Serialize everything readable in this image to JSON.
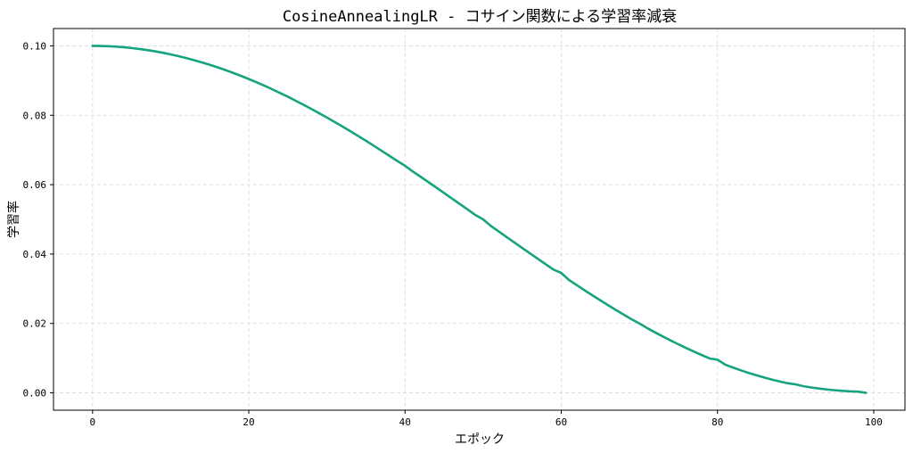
{
  "chart_data": {
    "type": "line",
    "title": "CosineAnnealingLR - コサイン関数による学習率減衰",
    "xlabel": "エポック",
    "ylabel": "学習率",
    "xlim": [
      -5,
      104
    ],
    "ylim": [
      -0.005,
      0.105
    ],
    "xticks": [
      0,
      20,
      40,
      60,
      80,
      100
    ],
    "yticks": [
      0.0,
      0.02,
      0.04,
      0.06,
      0.08,
      0.1
    ],
    "xtick_labels": [
      "0",
      "20",
      "40",
      "60",
      "80",
      "100"
    ],
    "ytick_labels": [
      "0.00",
      "0.02",
      "0.04",
      "0.06",
      "0.08",
      "0.10"
    ],
    "grid": true,
    "colors": {
      "line": "#16a37f"
    },
    "series": [
      {
        "x": [
          0,
          1,
          2,
          3,
          4,
          5,
          6,
          7,
          8,
          9,
          10,
          11,
          12,
          13,
          14,
          15,
          16,
          17,
          18,
          19,
          20,
          21,
          22,
          23,
          24,
          25,
          26,
          27,
          28,
          29,
          30,
          31,
          32,
          33,
          34,
          35,
          36,
          37,
          38,
          39,
          40,
          41,
          42,
          43,
          44,
          45,
          46,
          47,
          48,
          49,
          50,
          51,
          52,
          53,
          54,
          55,
          56,
          57,
          58,
          59,
          60,
          61,
          62,
          63,
          64,
          65,
          66,
          67,
          68,
          69,
          70,
          71,
          72,
          73,
          74,
          75,
          76,
          77,
          78,
          79,
          80,
          81,
          82,
          83,
          84,
          85,
          86,
          87,
          88,
          89,
          90,
          91,
          92,
          93,
          94,
          95,
          96,
          97,
          98,
          99
        ],
        "y": [
          0.1,
          0.09997,
          0.0999,
          0.09978,
          0.09961,
          0.09938,
          0.09911,
          0.09879,
          0.09843,
          0.09801,
          0.09755,
          0.09704,
          0.09649,
          0.09589,
          0.09524,
          0.09455,
          0.09382,
          0.09304,
          0.09222,
          0.09135,
          0.09045,
          0.0895,
          0.08852,
          0.08749,
          0.08642,
          0.08536,
          0.08418,
          0.08302,
          0.08183,
          0.0806,
          0.07935,
          0.07806,
          0.07675,
          0.0754,
          0.07403,
          0.07264,
          0.07122,
          0.06978,
          0.06831,
          0.06683,
          0.06545,
          0.06381,
          0.06227,
          0.06073,
          0.05917,
          0.0576,
          0.05603,
          0.05444,
          0.05286,
          0.05127,
          0.05,
          0.04809,
          0.04651,
          0.04492,
          0.04334,
          0.04177,
          0.0402,
          0.03863,
          0.03708,
          0.03554,
          0.03455,
          0.03251,
          0.03102,
          0.02954,
          0.02809,
          0.02667,
          0.02526,
          0.02389,
          0.02253,
          0.02121,
          0.02,
          0.01866,
          0.01744,
          0.01625,
          0.0151,
          0.01399,
          0.01291,
          0.01187,
          0.01087,
          0.00991,
          0.00955,
          0.00812,
          0.00728,
          0.00649,
          0.00574,
          0.00505,
          0.0044,
          0.0038,
          0.00325,
          0.00275,
          0.00245,
          0.0019,
          0.00155,
          0.00124,
          0.00097,
          0.00075,
          0.00057,
          0.00043,
          0.00034,
          0.0
        ]
      }
    ]
  }
}
